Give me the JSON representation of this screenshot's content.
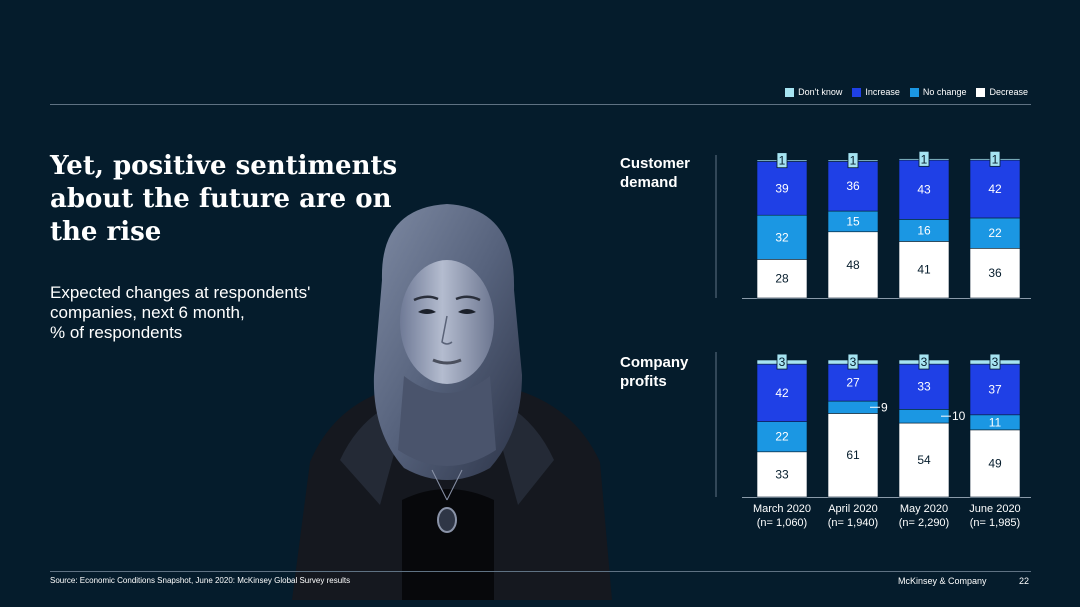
{
  "title": "Yet, positive sentiments about the future are on the rise",
  "subtitle": "Expected changes at respondents' companies, next 6 month,\n% of respondents",
  "legend": [
    {
      "label": "Don't know",
      "color": "#a6e4f2"
    },
    {
      "label": "Increase",
      "color": "#1f40e6"
    },
    {
      "label": "No change",
      "color": "#1b97e3"
    },
    {
      "label": "Decrease",
      "color": "#ffffff"
    }
  ],
  "chart_data": [
    {
      "type": "bar",
      "stacked": true,
      "title": "Customer\ndemand",
      "categories": [
        "March 2020\n(n= 1,060)",
        "April 2020\n(n= 1,940)",
        "May 2020\n(n= 2,290)",
        "June 2020\n(n= 1,985)"
      ],
      "series": [
        {
          "name": "Decrease",
          "values": [
            28,
            48,
            41,
            36
          ]
        },
        {
          "name": "No change",
          "values": [
            32,
            15,
            16,
            22
          ]
        },
        {
          "name": "Increase",
          "values": [
            39,
            36,
            43,
            42
          ]
        },
        {
          "name": "Don't know",
          "values": [
            1,
            1,
            1,
            1
          ]
        }
      ],
      "ylim": [
        0,
        100
      ]
    },
    {
      "type": "bar",
      "stacked": true,
      "title": "Company\nprofits",
      "categories": [
        "March 2020\n(n= 1,060)",
        "April 2020\n(n= 1,940)",
        "May 2020\n(n= 2,290)",
        "June 2020\n(n= 1,985)"
      ],
      "series": [
        {
          "name": "Decrease",
          "values": [
            33,
            61,
            54,
            49
          ]
        },
        {
          "name": "No change",
          "values": [
            22,
            9,
            10,
            11
          ]
        },
        {
          "name": "Increase",
          "values": [
            42,
            27,
            33,
            37
          ]
        },
        {
          "name": "Don't know",
          "values": [
            3,
            3,
            3,
            3
          ]
        }
      ],
      "ylim": [
        0,
        100
      ]
    }
  ],
  "footer": {
    "source": "Source: Economic Conditions Snapshot, June 2020: McKinsey Global Survey results",
    "brand": "McKinsey & Company",
    "page": "22"
  }
}
